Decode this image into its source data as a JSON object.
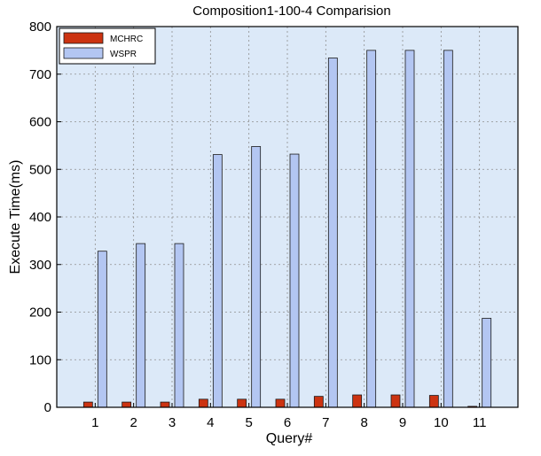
{
  "chart_data": {
    "type": "bar",
    "title": "Composition1-100-4 Comparision",
    "xlabel": "Query#",
    "ylabel": "Execute Time(ms)",
    "ylim": [
      0,
      800
    ],
    "yticks": [
      0,
      100,
      200,
      300,
      400,
      500,
      600,
      700,
      800
    ],
    "grid": true,
    "legend_position": "top-left",
    "categories": [
      "1",
      "2",
      "3",
      "4",
      "5",
      "6",
      "7",
      "8",
      "9",
      "10",
      "11"
    ],
    "series": [
      {
        "name": "MCHRC",
        "color": "#cc3311",
        "values": [
          11,
          11,
          11,
          17,
          17,
          17,
          23,
          26,
          26,
          25,
          2
        ]
      },
      {
        "name": "WSPR",
        "color": "#b3c6f2",
        "values": [
          328,
          344,
          344,
          531,
          548,
          532,
          734,
          750,
          750,
          750,
          187
        ]
      }
    ]
  },
  "colors": {
    "plot_background": "#dce9f8",
    "grid": "#8f8f8f",
    "bar_edge": "#1a1a1a"
  }
}
